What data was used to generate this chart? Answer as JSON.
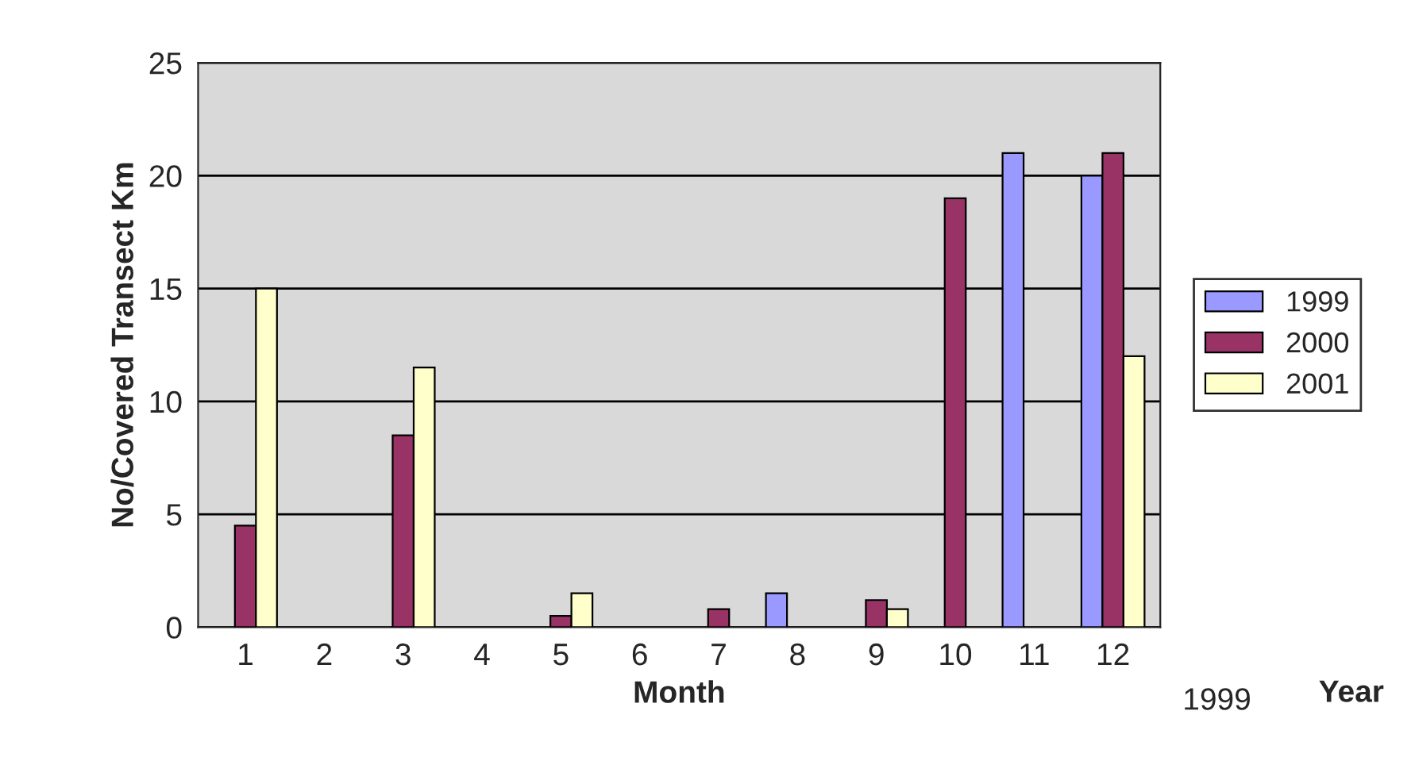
{
  "chart_data": {
    "type": "bar",
    "xlabel": "Month",
    "ylabel": "No/Covered Transect Km",
    "categories": [
      "1",
      "2",
      "3",
      "4",
      "5",
      "6",
      "7",
      "8",
      "9",
      "10",
      "11",
      "12"
    ],
    "series": [
      {
        "name": "1999",
        "color": "#9999ff",
        "values": [
          null,
          null,
          null,
          null,
          null,
          null,
          null,
          1.5,
          null,
          null,
          21,
          20
        ]
      },
      {
        "name": "2000",
        "color": "#993366",
        "values": [
          4.5,
          null,
          8.5,
          null,
          0.5,
          null,
          0.8,
          null,
          1.2,
          19,
          null,
          21
        ]
      },
      {
        "name": "2001",
        "color": "#ffffcc",
        "values": [
          15,
          null,
          11.5,
          null,
          1.5,
          null,
          null,
          null,
          0.8,
          null,
          null,
          12
        ]
      }
    ],
    "ylim": [
      0,
      25
    ],
    "yticks": [
      0,
      5,
      10,
      15,
      20,
      25
    ],
    "grid": "y",
    "legend": "right",
    "annotations": [
      "Year",
      "1999"
    ]
  }
}
